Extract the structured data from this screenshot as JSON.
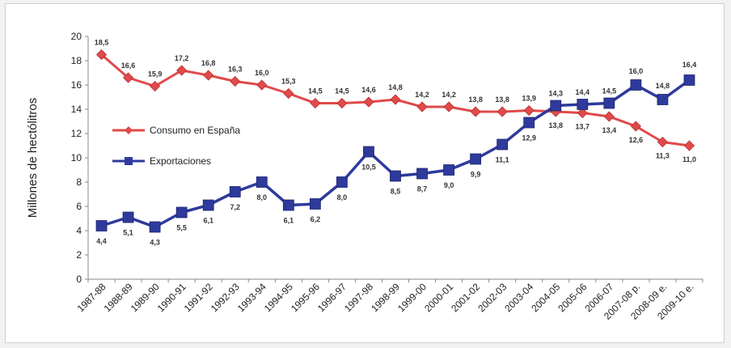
{
  "chart_data": {
    "type": "line",
    "ylabel": "Millones de hectólitros",
    "ylim": [
      0,
      20
    ],
    "yticks": [
      0,
      2,
      4,
      6,
      8,
      10,
      12,
      14,
      16,
      18,
      20
    ],
    "grid": false,
    "legend_position": "left",
    "categories": [
      "1987-88",
      "1988-89",
      "1989-90",
      "1990-91",
      "1991-92",
      "1992-93",
      "1993-94",
      "1994-95",
      "1995-96",
      "1996-97",
      "1997-98",
      "1998-99",
      "1999-00",
      "2000-01",
      "2001-02",
      "2002-03",
      "2003-04",
      "2004-05",
      "2005-06",
      "2006-07",
      "2007-08 p.",
      "2008-09 e.",
      "2009-10 e."
    ],
    "series": [
      {
        "name": "Consumo en España",
        "color": "#e04a4a",
        "marker": "diamond",
        "values": [
          18.5,
          16.6,
          15.9,
          17.2,
          16.8,
          16.3,
          16.0,
          15.3,
          14.5,
          14.5,
          14.6,
          14.8,
          14.2,
          14.2,
          13.8,
          13.8,
          13.9,
          13.8,
          13.7,
          13.4,
          12.6,
          11.3,
          11.0
        ],
        "labels": [
          "18,5",
          "16,6",
          "15,9",
          "17,2",
          "16,8",
          "16,3",
          "16,0",
          "15,3",
          "14,5",
          "14,5",
          "14,6",
          "14,8",
          "14,2",
          "14,2",
          "13,8",
          "13,8",
          "13,9",
          "13,8",
          "13,7",
          "13,4",
          "12,6",
          "11,3",
          "11,0"
        ]
      },
      {
        "name": "Exportaciones",
        "color": "#2e3a9c",
        "marker": "square",
        "values": [
          4.4,
          5.1,
          4.3,
          5.5,
          6.1,
          7.2,
          8.0,
          6.1,
          6.2,
          8.0,
          10.5,
          8.5,
          8.7,
          9.0,
          9.9,
          11.1,
          12.9,
          14.3,
          14.4,
          14.5,
          16.0,
          14.8,
          16.4
        ],
        "labels": [
          "4,4",
          "5,1",
          "4,3",
          "5,5",
          "6,1",
          "7,2",
          "8,0",
          "6,1",
          "6,2",
          "8,0",
          "10,5",
          "8,5",
          "8,7",
          "9,0",
          "9,9",
          "11,1",
          "12,9",
          "14,3",
          "14,4",
          "14,5",
          "16,0",
          "14,8",
          "16,4"
        ]
      }
    ]
  }
}
